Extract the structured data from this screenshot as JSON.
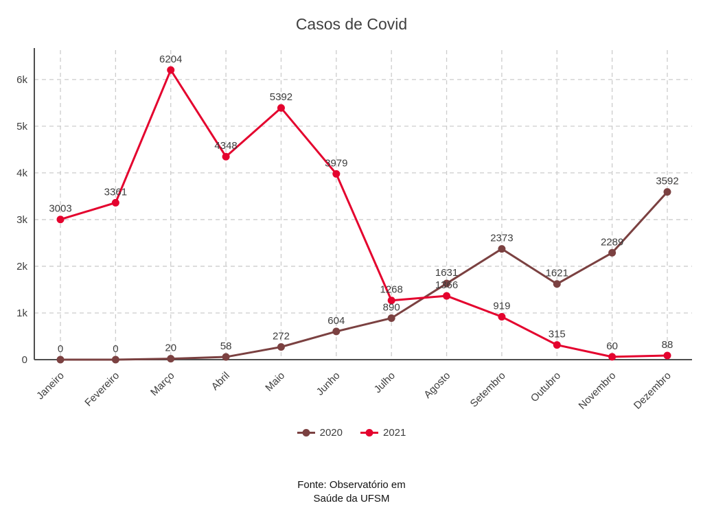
{
  "chart_data": {
    "type": "line",
    "title": "Casos de Covid",
    "categories": [
      "Janeiro",
      "Fevereiro",
      "Março",
      "Abril",
      "Maio",
      "Junho",
      "Julho",
      "Agosto",
      "Setembro",
      "Outubro",
      "Novembro",
      "Dezembro"
    ],
    "series": [
      {
        "name": "2020",
        "color": "#7b4141",
        "values": [
          0,
          0,
          20,
          58,
          272,
          604,
          890,
          1631,
          2373,
          1621,
          2289,
          3592
        ]
      },
      {
        "name": "2021",
        "color": "#e4032e",
        "values": [
          3003,
          3361,
          6204,
          4348,
          5392,
          3979,
          1268,
          1366,
          919,
          315,
          60,
          88
        ]
      }
    ],
    "yticks": [
      {
        "value": 0,
        "label": "0"
      },
      {
        "value": 1000,
        "label": "1k"
      },
      {
        "value": 2000,
        "label": "2k"
      },
      {
        "value": 3000,
        "label": "3k"
      },
      {
        "value": 4000,
        "label": "4k"
      },
      {
        "value": 5000,
        "label": "5k"
      },
      {
        "value": 6000,
        "label": "6k"
      }
    ],
    "ylim": [
      0,
      6630
    ],
    "grid": "dashed",
    "grid_color": "#cccccc",
    "axis_color": "#4d4d4d",
    "label_color": "#3d3d3d",
    "legend_position": "bottom"
  },
  "source": {
    "line1": "Fonte: Observatório em",
    "line2": "Saúde da UFSM"
  }
}
